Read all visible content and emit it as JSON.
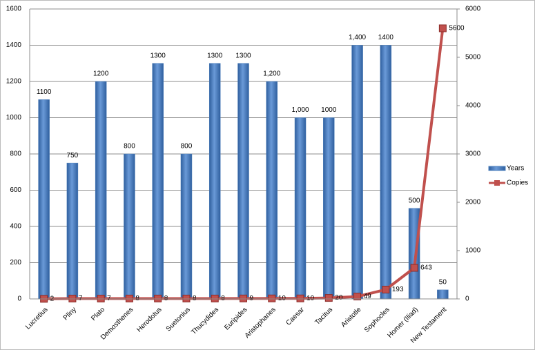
{
  "chart_data": {
    "type": "bar-line",
    "categories": [
      "Lucretius",
      "Pliny",
      "Plato",
      "Demosthenes",
      "Herodotus",
      "Suetonius",
      "Thucydides",
      "Euripides",
      "Aristophanes",
      "Caesar",
      "Tacitus",
      "Aristotle",
      "Sophocles",
      "Homer (Iliad)",
      "New Testament"
    ],
    "series": [
      {
        "name": "Years",
        "color": "#4f81bd",
        "type": "bar",
        "values": [
          1100,
          750,
          1200,
          800,
          1300,
          800,
          1300,
          1300,
          1200,
          1000,
          1000,
          1400,
          1400,
          500,
          50
        ],
        "value_labels": [
          "1100",
          "750",
          "1200",
          "800",
          "1300",
          "800",
          "1300",
          "1300",
          "1,200",
          "1,000",
          "1000",
          "1,400",
          "1400",
          "500",
          "50"
        ]
      },
      {
        "name": "Copies",
        "color": "#c0504d",
        "type": "line",
        "axis": "y2",
        "values": [
          2,
          7,
          7,
          8,
          8,
          8,
          8,
          9,
          10,
          10,
          20,
          49,
          193,
          643,
          5600
        ]
      }
    ],
    "ylim": [
      0,
      1600
    ],
    "yticks": [
      0,
      200,
      400,
      600,
      800,
      1000,
      1200,
      1400,
      1600
    ],
    "y2lim": [
      0,
      6000
    ],
    "y2ticks": [
      0,
      1000,
      2000,
      3000,
      4000,
      5000,
      6000
    ],
    "grid": true,
    "legend": "right"
  }
}
